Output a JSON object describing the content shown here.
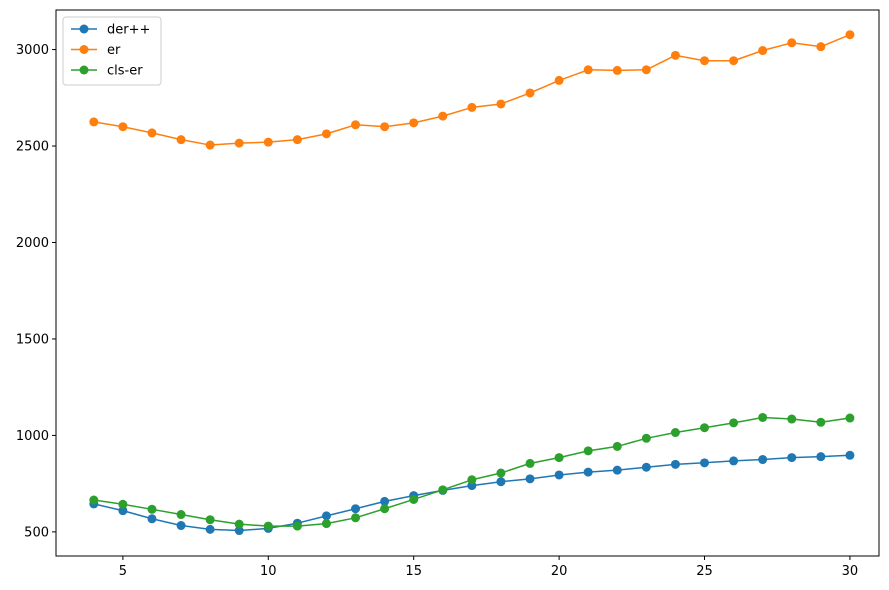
{
  "chart_data": {
    "type": "line",
    "title": "",
    "xlabel": "",
    "ylabel": "",
    "xlim": [
      2.7,
      31.0
    ],
    "ylim": [
      375,
      3205
    ],
    "xticks": [
      5,
      10,
      15,
      20,
      25,
      30
    ],
    "yticks": [
      500,
      1000,
      1500,
      2000,
      2500,
      3000
    ],
    "grid": false,
    "legend_position": "top-left",
    "x": [
      4,
      5,
      6,
      7,
      8,
      9,
      10,
      11,
      12,
      13,
      14,
      15,
      16,
      17,
      18,
      19,
      20,
      21,
      22,
      23,
      24,
      25,
      26,
      27,
      28,
      29,
      30
    ],
    "series": [
      {
        "name": "der++",
        "color": "#1f77b4",
        "values": [
          645,
          610,
          568,
          533,
          513,
          507,
          518,
          545,
          583,
          620,
          658,
          688,
          715,
          740,
          760,
          775,
          795,
          810,
          820,
          835,
          850,
          858,
          868,
          875,
          885,
          890,
          897
        ]
      },
      {
        "name": "er",
        "color": "#ff7f0e",
        "values": [
          2625,
          2600,
          2568,
          2533,
          2505,
          2515,
          2520,
          2533,
          2563,
          2610,
          2600,
          2620,
          2655,
          2700,
          2718,
          2775,
          2840,
          2895,
          2892,
          2895,
          2970,
          2942,
          2942,
          2995,
          3035,
          3015,
          3077
        ]
      },
      {
        "name": "cls-er",
        "color": "#2ca02c",
        "values": [
          665,
          643,
          617,
          590,
          563,
          540,
          530,
          530,
          543,
          573,
          620,
          668,
          718,
          770,
          805,
          855,
          885,
          920,
          943,
          985,
          1015,
          1040,
          1065,
          1093,
          1085,
          1068,
          1090
        ]
      }
    ]
  }
}
